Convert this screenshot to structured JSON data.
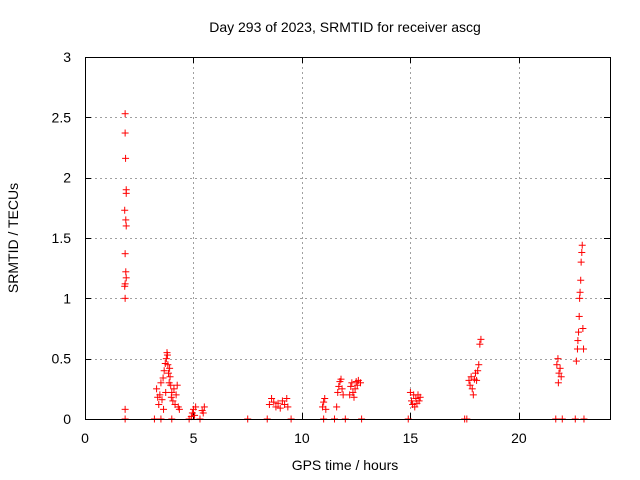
{
  "chart_data": {
    "type": "scatter",
    "title": "Day 293 of 2023, SRMTID for receiver ascg",
    "xlabel": "GPS time / hours",
    "ylabel": "SRMTID / TECUs",
    "xlim": [
      0,
      24.2
    ],
    "ylim": [
      0,
      3
    ],
    "xticks": [
      0,
      5,
      10,
      15,
      20
    ],
    "xtick_labels": [
      "0",
      "5",
      "10",
      "15",
      "20"
    ],
    "yticks": [
      0,
      0.5,
      1,
      1.5,
      2,
      2.5,
      3
    ],
    "ytick_labels": [
      "0",
      "0.5",
      "1",
      "1.5",
      "2",
      "2.5",
      "3"
    ],
    "grid": true,
    "marker": "+",
    "color": "#ff0000",
    "series": [
      {
        "name": "SRMTID",
        "points": [
          [
            1.85,
            2.53
          ],
          [
            1.85,
            2.37
          ],
          [
            1.87,
            2.16
          ],
          [
            1.9,
            1.9
          ],
          [
            1.9,
            1.87
          ],
          [
            1.83,
            1.73
          ],
          [
            1.88,
            1.65
          ],
          [
            1.9,
            1.6
          ],
          [
            1.85,
            1.37
          ],
          [
            1.88,
            1.22
          ],
          [
            1.9,
            1.17
          ],
          [
            1.85,
            1.12
          ],
          [
            1.83,
            1.1
          ],
          [
            1.85,
            1.0
          ],
          [
            1.85,
            0.08
          ],
          [
            1.85,
            0.0
          ],
          [
            3.2,
            0.0
          ],
          [
            3.3,
            0.25
          ],
          [
            3.35,
            0.18
          ],
          [
            3.4,
            0.12
          ],
          [
            3.45,
            0.2
          ],
          [
            3.5,
            0.3
          ],
          [
            3.55,
            0.16
          ],
          [
            3.6,
            0.34
          ],
          [
            3.62,
            0.08
          ],
          [
            3.65,
            0.4
          ],
          [
            3.7,
            0.46
          ],
          [
            3.72,
            0.22
          ],
          [
            3.75,
            0.5
          ],
          [
            3.78,
            0.55
          ],
          [
            3.8,
            0.53
          ],
          [
            3.82,
            0.45
          ],
          [
            3.85,
            0.38
          ],
          [
            3.88,
            0.3
          ],
          [
            3.9,
            0.42
          ],
          [
            3.92,
            0.35
          ],
          [
            3.95,
            0.28
          ],
          [
            3.98,
            0.18
          ],
          [
            4.0,
            0.22
          ],
          [
            4.05,
            0.15
          ],
          [
            4.1,
            0.25
          ],
          [
            4.15,
            0.12
          ],
          [
            4.2,
            0.2
          ],
          [
            4.25,
            0.28
          ],
          [
            4.3,
            0.1
          ],
          [
            4.35,
            0.08
          ],
          [
            3.5,
            0.0
          ],
          [
            4.0,
            0.0
          ],
          [
            4.8,
            0.0
          ],
          [
            4.9,
            0.02
          ],
          [
            4.95,
            0.05
          ],
          [
            5.0,
            0.08
          ],
          [
            5.05,
            0.03
          ],
          [
            5.1,
            0.1
          ],
          [
            5.3,
            0.0
          ],
          [
            5.4,
            0.07
          ],
          [
            5.5,
            0.1
          ],
          [
            5.45,
            0.05
          ],
          [
            7.5,
            0.0
          ],
          [
            8.4,
            0.0
          ],
          [
            8.5,
            0.12
          ],
          [
            8.6,
            0.17
          ],
          [
            8.7,
            0.14
          ],
          [
            8.8,
            0.1
          ],
          [
            8.9,
            0.13
          ],
          [
            9.0,
            0.09
          ],
          [
            9.1,
            0.15
          ],
          [
            9.2,
            0.12
          ],
          [
            9.3,
            0.17
          ],
          [
            9.35,
            0.1
          ],
          [
            9.5,
            0.0
          ],
          [
            11.0,
            0.0
          ],
          [
            10.95,
            0.1
          ],
          [
            11.0,
            0.14
          ],
          [
            11.05,
            0.17
          ],
          [
            11.1,
            0.08
          ],
          [
            11.5,
            0.0
          ],
          [
            11.6,
            0.1
          ],
          [
            11.65,
            0.22
          ],
          [
            11.7,
            0.27
          ],
          [
            11.75,
            0.31
          ],
          [
            11.8,
            0.33
          ],
          [
            11.85,
            0.25
          ],
          [
            11.9,
            0.2
          ],
          [
            12.0,
            0.0
          ],
          [
            12.2,
            0.2
          ],
          [
            12.25,
            0.27
          ],
          [
            12.3,
            0.3
          ],
          [
            12.35,
            0.22
          ],
          [
            12.4,
            0.18
          ],
          [
            12.45,
            0.25
          ],
          [
            12.5,
            0.31
          ],
          [
            12.55,
            0.28
          ],
          [
            12.6,
            0.32
          ],
          [
            12.7,
            0.3
          ],
          [
            12.75,
            0.0
          ],
          [
            14.9,
            0.0
          ],
          [
            15.0,
            0.22
          ],
          [
            15.05,
            0.15
          ],
          [
            15.1,
            0.12
          ],
          [
            15.15,
            0.2
          ],
          [
            15.2,
            0.1
          ],
          [
            15.25,
            0.17
          ],
          [
            15.3,
            0.13
          ],
          [
            15.35,
            0.2
          ],
          [
            15.4,
            0.15
          ],
          [
            15.45,
            0.18
          ],
          [
            17.5,
            0.0
          ],
          [
            17.6,
            0.0
          ],
          [
            17.7,
            0.32
          ],
          [
            17.75,
            0.28
          ],
          [
            17.8,
            0.35
          ],
          [
            17.85,
            0.25
          ],
          [
            17.9,
            0.2
          ],
          [
            17.95,
            0.33
          ],
          [
            18.0,
            0.38
          ],
          [
            18.05,
            0.32
          ],
          [
            18.1,
            0.4
          ],
          [
            18.15,
            0.45
          ],
          [
            18.2,
            0.62
          ],
          [
            18.25,
            0.66
          ],
          [
            21.7,
            0.0
          ],
          [
            21.75,
            0.45
          ],
          [
            21.8,
            0.5
          ],
          [
            21.82,
            0.3
          ],
          [
            21.85,
            0.38
          ],
          [
            21.9,
            0.42
          ],
          [
            21.95,
            0.35
          ],
          [
            22.0,
            0.0
          ],
          [
            22.6,
            0.0
          ],
          [
            22.65,
            0.48
          ],
          [
            22.7,
            0.58
          ],
          [
            22.72,
            0.65
          ],
          [
            22.75,
            0.72
          ],
          [
            22.78,
            0.85
          ],
          [
            22.8,
            1.0
          ],
          [
            22.82,
            1.05
          ],
          [
            22.85,
            1.15
          ],
          [
            22.87,
            1.3
          ],
          [
            22.9,
            1.38
          ],
          [
            22.92,
            1.44
          ],
          [
            22.95,
            0.75
          ],
          [
            22.98,
            0.58
          ],
          [
            23.0,
            0.0
          ]
        ]
      }
    ]
  }
}
